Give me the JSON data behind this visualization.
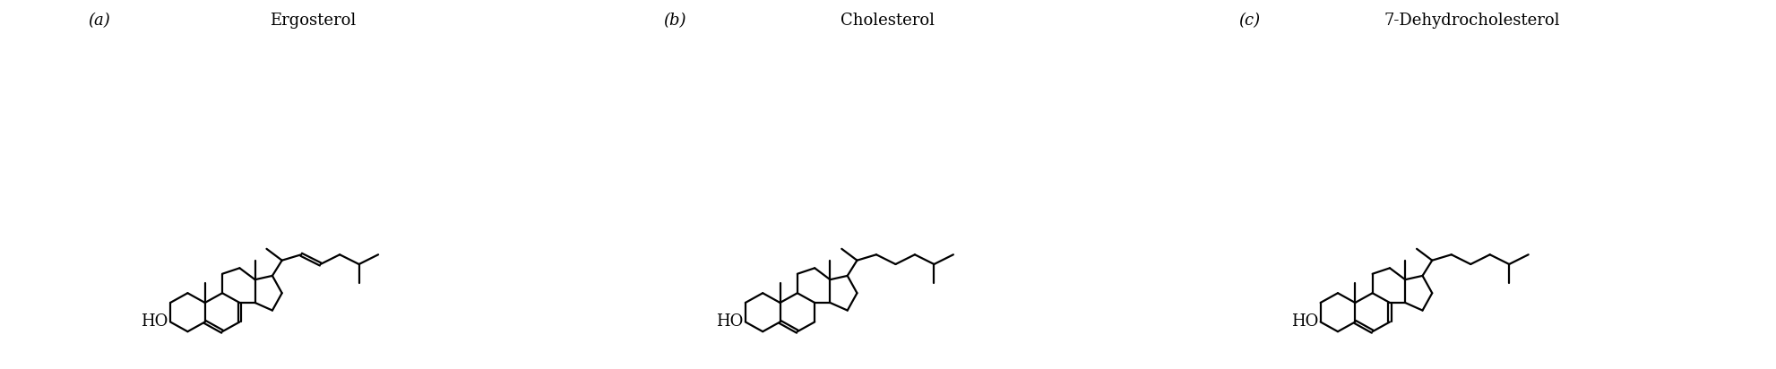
{
  "background_color": "#ffffff",
  "line_color": "#000000",
  "line_width": 1.6,
  "panel_labels": [
    "(a)",
    "(b)",
    "(c)"
  ],
  "molecule_names": [
    "Ergosterol",
    "Cholesterol",
    "7-Dehydrocholesterol"
  ],
  "panel_label_fontsize": 13,
  "molecule_name_fontsize": 13,
  "ho_fontsize": 13,
  "fig_width": 19.82,
  "fig_height": 4.12
}
